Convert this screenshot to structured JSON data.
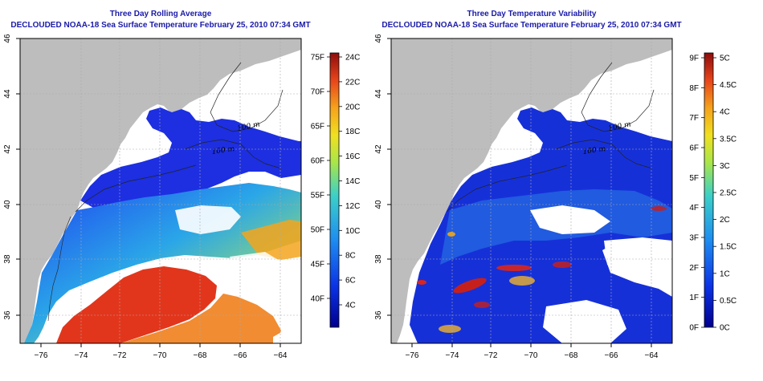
{
  "panels": [
    {
      "title_line1": "Three Day Rolling Average",
      "title_line2": "DECLOUDED NOAA-18 Sea Surface Temperature February 25, 2010 07:34 GMT",
      "colorbar_left": [
        "75F",
        "70F",
        "65F",
        "60F",
        "55F",
        "50F",
        "45F",
        "40F"
      ],
      "colorbar_right": [
        "24C",
        "22C",
        "20C",
        "18C",
        "16C",
        "14C",
        "12C",
        "10C",
        "8C",
        "6C",
        "4C"
      ]
    },
    {
      "title_line1": "Three Day Temperature Variability",
      "title_line2": "DECLOUDED NOAA-18 Sea Surface Temperature February 25, 2010 07:34 GMT",
      "colorbar_left": [
        "9F",
        "8F",
        "7F",
        "6F",
        "5F",
        "4F",
        "3F",
        "2F",
        "1F",
        "0F"
      ],
      "colorbar_right": [
        "5C",
        "4.5C",
        "4C",
        "3.5C",
        "3C",
        "2.5C",
        "2C",
        "1.5C",
        "1C",
        "0.5C",
        "0C"
      ]
    }
  ],
  "axes": {
    "lon_ticks": [
      "−76",
      "−74",
      "−72",
      "−70",
      "−68",
      "−66",
      "−64"
    ],
    "lat_ticks": [
      "46",
      "44",
      "42",
      "40",
      "38",
      "36"
    ]
  },
  "contour_labels": [
    "100 m",
    "100 m"
  ],
  "colors": {
    "land": "#bdbdbd",
    "no_data": "#ffffff",
    "cold": "#0b1fa8",
    "warm": "#e2261a"
  }
}
